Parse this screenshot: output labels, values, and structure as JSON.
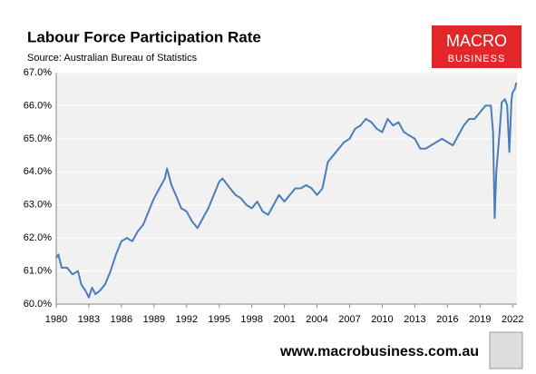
{
  "chart_data": {
    "type": "line",
    "title": "Labour Force Participation Rate",
    "subtitle": "Source: Australian Bureau of Statistics",
    "x": [
      1980,
      1980.2,
      1980.5,
      1981,
      1981.5,
      1982,
      1982.3,
      1982.7,
      1983,
      1983.3,
      1983.6,
      1984,
      1984.5,
      1985,
      1985.5,
      1986,
      1986.5,
      1987,
      1987.5,
      1988,
      1988.5,
      1989,
      1989.5,
      1990,
      1990.2,
      1990.6,
      1991,
      1991.5,
      1992,
      1992.5,
      1993,
      1993.5,
      1994,
      1994.5,
      1995,
      1995.3,
      1996,
      1996.5,
      1997,
      1997.5,
      1998,
      1998.5,
      1999,
      1999.5,
      2000,
      2000.5,
      2001,
      2001.5,
      2002,
      2002.5,
      2003,
      2003.5,
      2004,
      2004.5,
      2005,
      2005.5,
      2006,
      2006.5,
      2007,
      2007.5,
      2008,
      2008.5,
      2009,
      2009.5,
      2010,
      2010.5,
      2011,
      2011.5,
      2012,
      2012.5,
      2013,
      2013.5,
      2014,
      2014.5,
      2015,
      2015.5,
      2016,
      2016.5,
      2017,
      2017.5,
      2018,
      2018.5,
      2019,
      2019.5,
      2020,
      2020.2,
      2020.35,
      2020.5,
      2020.8,
      2021,
      2021.3,
      2021.5,
      2021.7,
      2021.9,
      2022,
      2022.2,
      2022.35
    ],
    "values": [
      61.4,
      61.5,
      61.1,
      61.1,
      60.9,
      61.0,
      60.6,
      60.4,
      60.2,
      60.5,
      60.3,
      60.4,
      60.6,
      61.0,
      61.5,
      61.9,
      62.0,
      61.9,
      62.2,
      62.4,
      62.8,
      63.2,
      63.5,
      63.8,
      64.1,
      63.6,
      63.3,
      62.9,
      62.8,
      62.5,
      62.3,
      62.6,
      62.9,
      63.3,
      63.7,
      63.8,
      63.5,
      63.3,
      63.2,
      63.0,
      62.9,
      63.1,
      62.8,
      62.7,
      63.0,
      63.3,
      63.1,
      63.3,
      63.5,
      63.5,
      63.6,
      63.5,
      63.3,
      63.5,
      64.3,
      64.5,
      64.7,
      64.9,
      65.0,
      65.3,
      65.4,
      65.6,
      65.5,
      65.3,
      65.2,
      65.6,
      65.4,
      65.5,
      65.2,
      65.1,
      65.0,
      64.7,
      64.7,
      64.8,
      64.9,
      65.0,
      64.9,
      64.8,
      65.1,
      65.4,
      65.6,
      65.6,
      65.8,
      66.0,
      66.0,
      65.2,
      62.6,
      64.0,
      65.2,
      66.1,
      66.2,
      66.0,
      64.6,
      66.2,
      66.4,
      66.5,
      66.7
    ],
    "color": "#4a7ebb",
    "xlim": [
      1980,
      2022.4
    ],
    "xticks": [
      1980,
      1983,
      1986,
      1989,
      1992,
      1995,
      1998,
      2001,
      2004,
      2007,
      2010,
      2013,
      2016,
      2019,
      2022
    ],
    "ylim": [
      60,
      67
    ],
    "yticks": [
      {
        "value": 60,
        "label": "60.0%"
      },
      {
        "value": 61,
        "label": "61.0%"
      },
      {
        "value": 62,
        "label": "62.0%"
      },
      {
        "value": 63,
        "label": "63.0%"
      },
      {
        "value": 64,
        "label": "64.0%"
      },
      {
        "value": 65,
        "label": "65.0%"
      },
      {
        "value": 66,
        "label": "66.0%"
      },
      {
        "value": 67,
        "label": "67.0%"
      }
    ],
    "grid": true
  },
  "logo": {
    "line1": "MACRO",
    "line2": "BUSINESS"
  },
  "footer": "www.macrobusiness.com.au"
}
